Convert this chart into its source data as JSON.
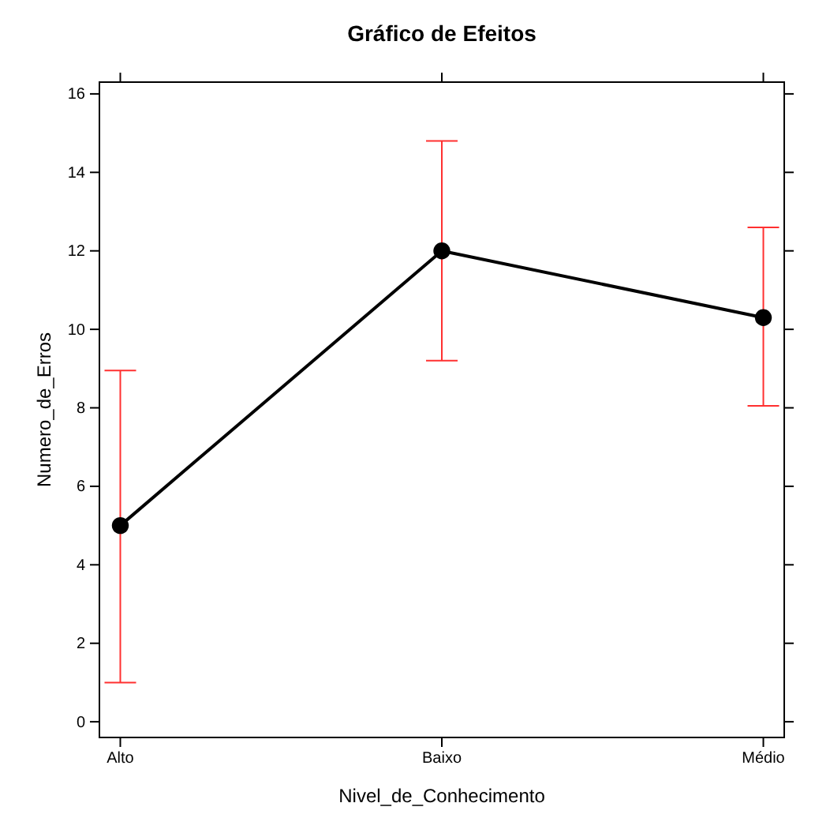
{
  "chart_data": {
    "type": "line",
    "title": "Gráfico de Efeitos",
    "xlabel": "Nivel_de_Conhecimento",
    "ylabel": "Numero_de_Erros",
    "categories": [
      "Alto",
      "Baixo",
      "Médio"
    ],
    "series": [
      {
        "color": "#000000",
        "values": [
          5,
          12,
          10.3
        ],
        "errors": [
          [
            1.0,
            8.95
          ],
          [
            9.2,
            14.8
          ],
          [
            8.05,
            12.6
          ]
        ]
      }
    ],
    "ylim": [
      -0.4,
      16.3
    ],
    "yticks": [
      0,
      2,
      4,
      6,
      8,
      10,
      12,
      14,
      16
    ],
    "marker": "circle",
    "line_style": "solid"
  }
}
